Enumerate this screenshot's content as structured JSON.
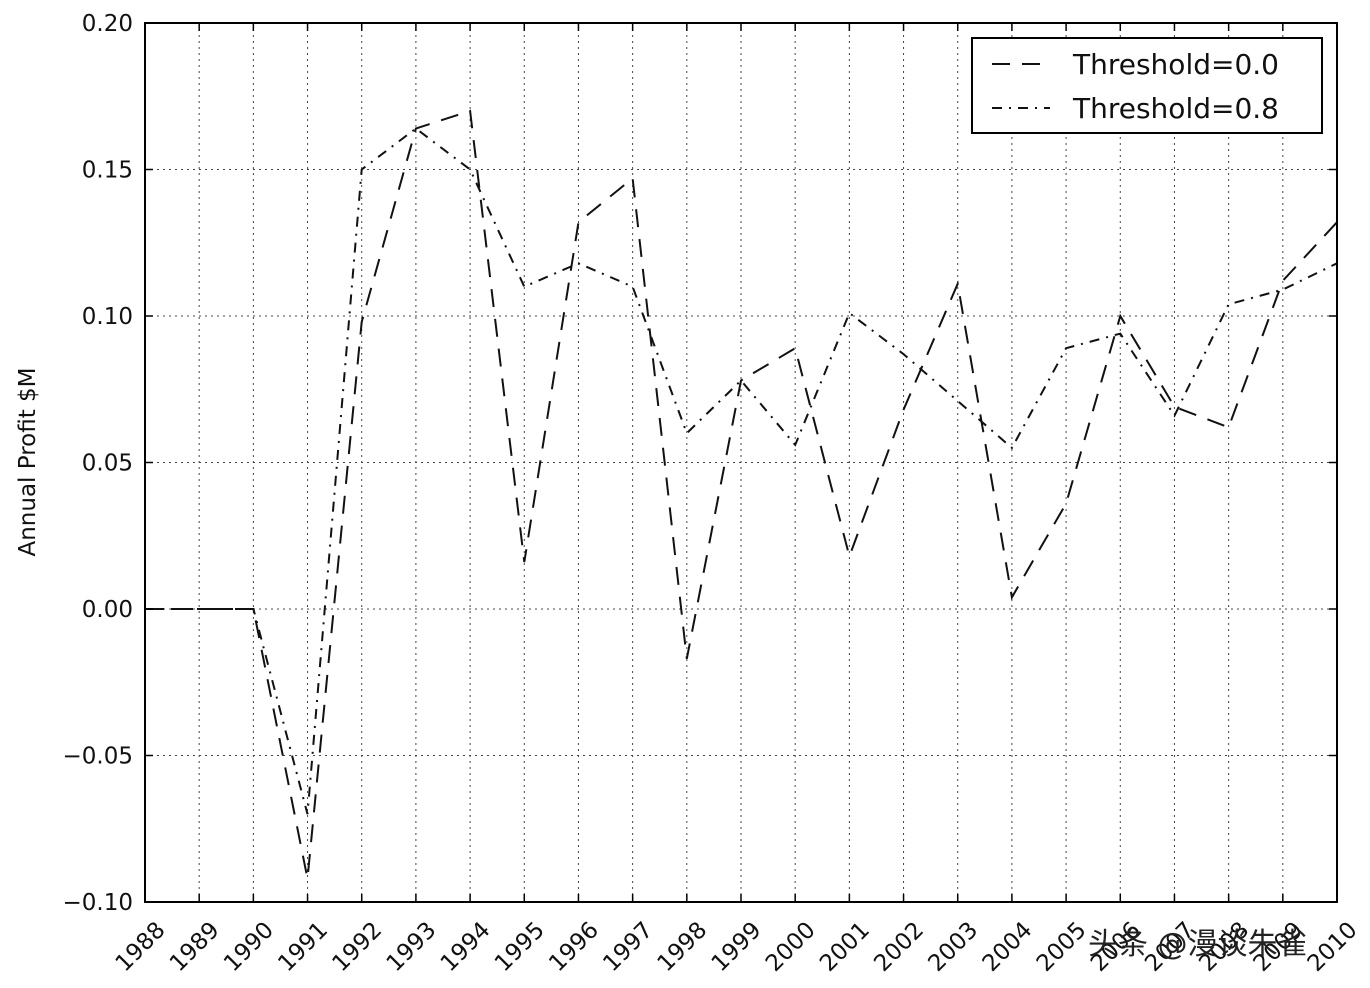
{
  "chart_data": {
    "type": "line",
    "title": "",
    "xlabel": "",
    "ylabel": "Annual Profit $M",
    "x": [
      1988,
      1989,
      1990,
      1991,
      1992,
      1993,
      1994,
      1995,
      1996,
      1997,
      1998,
      1999,
      2000,
      2001,
      2002,
      2003,
      2004,
      2005,
      2006,
      2007,
      2008,
      2009,
      2010
    ],
    "xlim": [
      1988,
      2010
    ],
    "ylim": [
      -0.1,
      0.2
    ],
    "yticks": [
      -0.1,
      -0.05,
      0.0,
      0.05,
      0.1,
      0.15,
      0.2
    ],
    "ytick_labels": [
      "−0.10",
      "−0.05",
      "0.00",
      "0.05",
      "0.10",
      "0.15",
      "0.20"
    ],
    "xtick_labels": [
      "1988",
      "1989",
      "1990",
      "1991",
      "1992",
      "1993",
      "1994",
      "1995",
      "1996",
      "1997",
      "1998",
      "1999",
      "2000",
      "2001",
      "2002",
      "2003",
      "2004",
      "2005",
      "2006",
      "2007",
      "2008",
      "2009",
      "2010"
    ],
    "grid": true,
    "legend_position": "top-right",
    "series": [
      {
        "name": "Threshold=0.0",
        "style": "dashed",
        "values": [
          0.0,
          0.0,
          0.0,
          -0.092,
          0.098,
          0.164,
          0.17,
          0.016,
          0.132,
          0.147,
          -0.017,
          0.078,
          0.089,
          0.018,
          0.068,
          0.111,
          0.004,
          0.036,
          0.1,
          0.069,
          0.062,
          0.112,
          0.132
        ]
      },
      {
        "name": "Threshold=0.8",
        "style": "dashdot",
        "values": [
          0.0,
          0.0,
          0.0,
          -0.07,
          0.15,
          0.164,
          0.15,
          0.11,
          0.118,
          0.11,
          0.06,
          0.078,
          0.056,
          0.101,
          0.087,
          0.071,
          0.055,
          0.089,
          0.094,
          0.066,
          0.104,
          0.109,
          0.118
        ]
      }
    ],
    "colors": {
      "line": "#111111",
      "grid": "#444444",
      "axes": "#000000"
    }
  },
  "watermark": "头条 @漫谈朱雀"
}
